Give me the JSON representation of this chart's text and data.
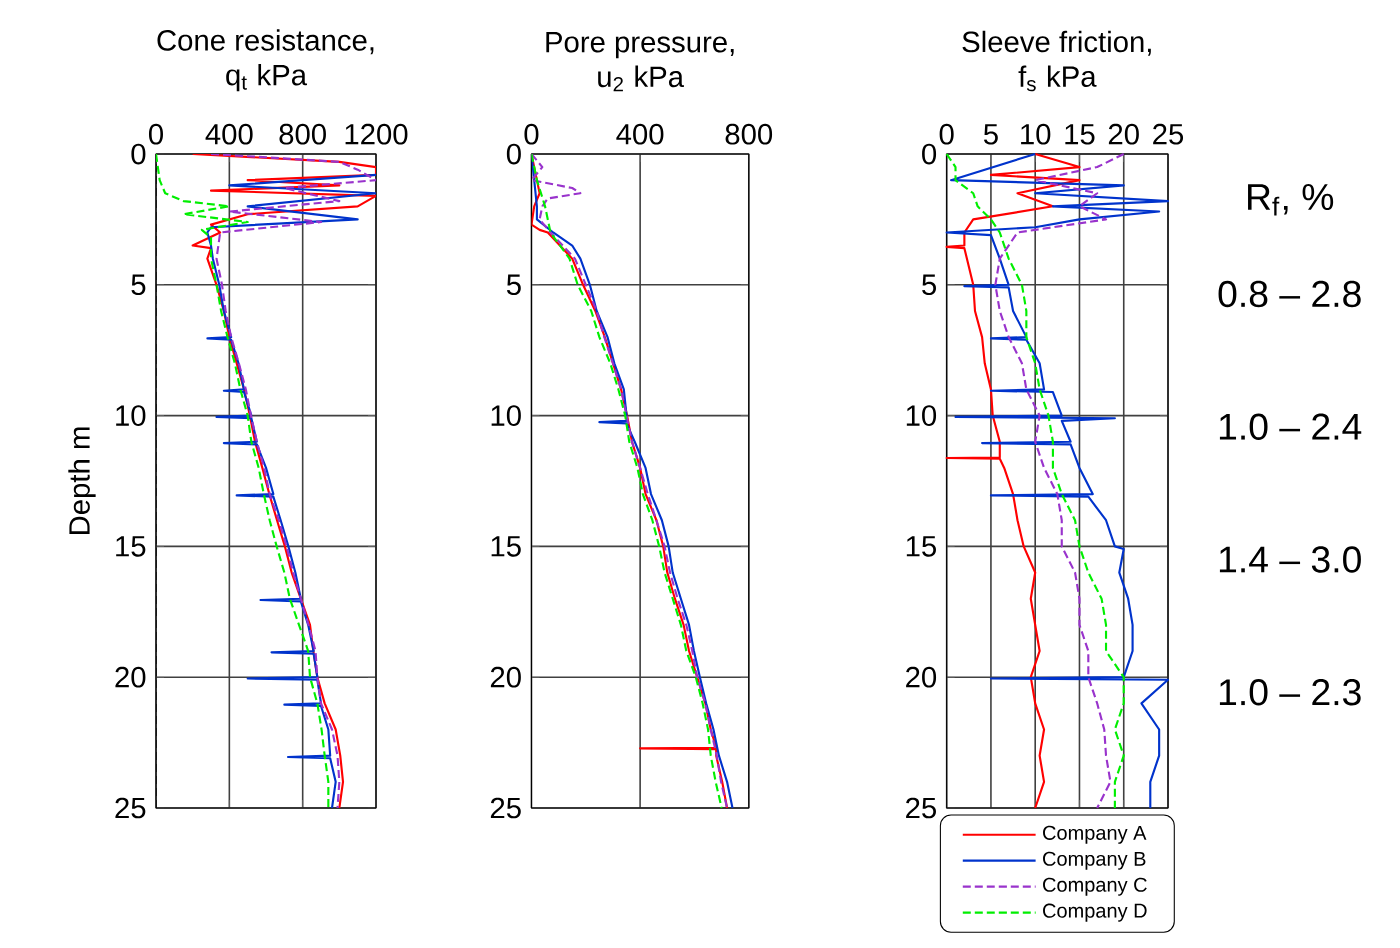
{
  "chart_data": [
    {
      "type": "line",
      "title": "Cone resistance,",
      "xlabel": "q$_{t}$ kPa",
      "ylabel": "Depth m",
      "xlim": [
        0,
        1200
      ],
      "xticks": [
        0,
        400,
        800,
        1200
      ],
      "ylim": [
        25,
        0
      ],
      "yticks": [
        0,
        5,
        10,
        15,
        20,
        25
      ],
      "grid": true,
      "ref_lines": [
        {
          "axis": "x",
          "value": 0,
          "line_style": "dashed",
          "color": "#000000"
        }
      ],
      "series": [
        {
          "color": "#ff0000",
          "line_style": "solid",
          "x": [
            200,
            1000,
            1200,
            1200,
            500,
            1000,
            300,
            1200,
            1100,
            500,
            300,
            350,
            200,
            300,
            280,
            330,
            370,
            400,
            440,
            480,
            512,
            540,
            580,
            618,
            660,
            703,
            740,
            790,
            840,
            858,
            880,
            920,
            980,
            1005,
            1020,
            1000
          ],
          "values": [
            0,
            0.3,
            0.5,
            0.8,
            1.0,
            1.2,
            1.4,
            1.6,
            2.0,
            2.3,
            2.7,
            3.0,
            3.5,
            3.6,
            4,
            5,
            6,
            7,
            8,
            9,
            10,
            11,
            12,
            13,
            14,
            15,
            16,
            17,
            18,
            19,
            20,
            21,
            22,
            23,
            24,
            25
          ]
        },
        {
          "color": "#0033cc",
          "line_style": "solid",
          "x": [
            1200,
            400,
            1200,
            500,
            1100,
            300,
            280,
            300,
            310,
            345,
            370,
            410,
            280,
            410,
            450,
            480,
            370,
            480,
            520,
            330,
            520,
            550,
            370,
            550,
            600,
            640,
            440,
            640,
            680,
            722,
            760,
            790,
            570,
            790,
            830,
            860,
            630,
            860,
            880,
            500,
            880,
            900,
            700,
            900,
            940,
            950,
            720,
            950,
            980,
            960
          ],
          "values": [
            0.8,
            1.2,
            1.5,
            2.0,
            2.5,
            2.8,
            3.0,
            3.5,
            4,
            5,
            6,
            7,
            7.05,
            7.1,
            8,
            9,
            9.05,
            9.1,
            10,
            10.05,
            10.1,
            11,
            11.05,
            11.1,
            12,
            13,
            13.05,
            13.1,
            14,
            15,
            16,
            17,
            17.05,
            17.1,
            18,
            19,
            19.05,
            19.1,
            20,
            20.05,
            20.1,
            21,
            21.05,
            21.1,
            22,
            23,
            23.05,
            23.1,
            24,
            25
          ]
        },
        {
          "color": "#9933cc",
          "line_style": "dashed",
          "x": [
            300,
            1000,
            1100,
            1200,
            700,
            1000,
            400,
            900,
            350,
            330,
            360,
            380,
            410,
            452,
            490,
            518,
            550,
            590,
            620,
            670,
            712,
            748,
            790,
            832,
            870,
            880,
            900,
            960,
            990,
            1000,
            990
          ],
          "values": [
            0,
            0.3,
            0.6,
            1,
            1.3,
            1.8,
            2.2,
            2.6,
            3,
            4,
            5,
            6,
            7,
            8,
            9,
            10,
            11,
            12,
            13,
            14,
            15,
            16,
            17,
            18,
            19,
            20,
            21,
            22,
            23,
            24,
            25
          ]
        },
        {
          "color": "#00ee00",
          "line_style": "dashed",
          "x": [
            0,
            20,
            50,
            150,
            400,
            150,
            500,
            250,
            300,
            300,
            330,
            355,
            390,
            430,
            460,
            500,
            520,
            560,
            588,
            620,
            658,
            700,
            730,
            780,
            830,
            840,
            880,
            903,
            920,
            940,
            940
          ],
          "values": [
            0,
            1,
            1.5,
            1.8,
            2,
            2.3,
            2.6,
            2.9,
            3.2,
            4,
            5,
            6,
            7,
            8,
            9,
            10,
            11,
            12,
            13,
            14,
            15,
            16,
            17,
            18,
            19,
            20,
            21,
            22,
            23,
            24,
            25
          ]
        }
      ]
    },
    {
      "type": "line",
      "title": "Pore pressure,",
      "xlabel": "u$_{2}$ kPa",
      "xlim": [
        0,
        800
      ],
      "xticks": [
        0,
        400,
        800
      ],
      "ylim": [
        25,
        0
      ],
      "yticks": [
        0,
        5,
        10,
        15,
        20,
        25
      ],
      "grid": true,
      "series": [
        {
          "color": "#ff0000",
          "line_style": "solid",
          "x": [
            0,
            20,
            30,
            10,
            0,
            30,
            60,
            150,
            190,
            235,
            270,
            300,
            330,
            352,
            370,
            400,
            420,
            460,
            485,
            500,
            528,
            560,
            580,
            610,
            640,
            660,
            680,
            400,
            680,
            680,
            702,
            720
          ],
          "values": [
            0,
            1,
            1.5,
            2,
            2.7,
            2.9,
            3,
            4,
            5,
            6,
            7,
            8,
            9,
            10,
            11,
            12,
            13,
            14,
            15,
            16,
            17,
            18,
            19,
            20,
            21,
            22,
            22.7,
            22.72,
            22.75,
            23,
            24,
            25
          ]
        },
        {
          "color": "#0033cc",
          "line_style": "solid",
          "x": [
            0,
            10,
            20,
            20,
            80,
            150,
            180,
            215,
            240,
            280,
            305,
            340,
            350,
            350,
            250,
            350,
            380,
            420,
            440,
            480,
            505,
            520,
            550,
            580,
            598,
            620,
            643,
            670,
            690,
            720,
            740
          ],
          "values": [
            0,
            1,
            2,
            2.5,
            3,
            3.5,
            4,
            5,
            6,
            7,
            8,
            9,
            10,
            10.2,
            10.25,
            10.3,
            11,
            12,
            13,
            14,
            15,
            16,
            17,
            18,
            19,
            20,
            21,
            22,
            23,
            24,
            25
          ]
        },
        {
          "color": "#9933cc",
          "line_style": "dashed",
          "x": [
            0,
            40,
            0,
            150,
            180,
            60,
            40,
            30,
            70,
            160,
            200,
            240,
            268,
            300,
            330,
            350,
            370,
            400,
            428,
            460,
            490,
            510,
            538,
            570,
            592,
            610,
            640,
            660,
            682,
            698,
            720
          ],
          "values": [
            0,
            0.5,
            1,
            1.3,
            1.5,
            1.7,
            2,
            2.5,
            3,
            4,
            5,
            6,
            7,
            8,
            9,
            10,
            11,
            12,
            13,
            14,
            15,
            16,
            17,
            18,
            19,
            20,
            21,
            22,
            23,
            24,
            25
          ]
        },
        {
          "color": "#00ee00",
          "line_style": "dashed",
          "x": [
            0,
            20,
            50,
            70,
            140,
            170,
            220,
            250,
            290,
            320,
            345,
            360,
            390,
            410,
            445,
            470,
            490,
            520,
            550,
            570,
            605,
            630,
            650,
            660,
            678,
            700
          ],
          "values": [
            0,
            1,
            2,
            3,
            4,
            5,
            6,
            7,
            8,
            9,
            10,
            11,
            12,
            13,
            14,
            15,
            16,
            17,
            18,
            19,
            20,
            21,
            22,
            23,
            24,
            25
          ]
        }
      ]
    },
    {
      "type": "line",
      "title": "Sleeve friction,",
      "xlabel": "f$_{s}$ kPa",
      "xlim": [
        0,
        25
      ],
      "xticks": [
        0,
        5,
        10,
        15,
        20,
        25
      ],
      "ylim": [
        25,
        0
      ],
      "yticks": [
        0,
        5,
        10,
        15,
        20,
        25
      ],
      "grid": true,
      "legend": "bottom",
      "annotations": [
        "R$_{f}$, %",
        "0.8 – 2.8",
        "1.0 – 2.4",
        "1.4 – 3.0",
        "1.0 – 2.3"
      ],
      "series": [
        {
          "name": "Company A",
          "color": "#ff0000",
          "line_style": "solid",
          "x": [
            10,
            15,
            5,
            15,
            8,
            12,
            3,
            2,
            2,
            0,
            2,
            3,
            3.2,
            4,
            4.3,
            5,
            5.2,
            6,
            6,
            0,
            6,
            6.5,
            7.5,
            8,
            8.7,
            10,
            9.5,
            10,
            10.5,
            9.5,
            10,
            11,
            10.5,
            11,
            10
          ],
          "values": [
            0,
            0.5,
            0.8,
            1,
            1.5,
            2,
            2.5,
            3,
            3.5,
            3.55,
            3.6,
            5,
            6,
            7,
            8,
            9,
            10,
            11,
            11.6,
            11.62,
            11.65,
            12,
            13,
            14,
            15,
            16,
            17,
            18,
            19,
            20,
            21,
            22,
            23,
            24,
            25
          ]
        },
        {
          "name": "Company B",
          "color": "#0033cc",
          "line_style": "solid",
          "x": [
            10,
            0.5,
            20,
            10,
            25,
            12,
            24,
            15,
            10,
            0,
            5,
            6,
            7,
            2,
            7,
            7.5,
            9,
            5,
            9,
            10.5,
            11,
            5,
            12,
            13,
            1,
            19,
            13,
            14,
            4,
            14,
            15,
            16.5,
            5,
            16,
            18,
            19,
            20,
            19.5,
            20.5,
            21,
            21,
            20,
            5,
            25,
            22,
            24,
            24,
            23,
            23
          ],
          "values": [
            0,
            1,
            1.2,
            1.5,
            1.8,
            2.0,
            2.2,
            2.5,
            2.8,
            3,
            3.1,
            4,
            5,
            5.05,
            5.1,
            6,
            7,
            7.05,
            7.1,
            8,
            9,
            9.05,
            9.1,
            10,
            10.05,
            10.1,
            10.2,
            11,
            11.05,
            11.1,
            12,
            13,
            13.05,
            13.1,
            14,
            15,
            15.1,
            16,
            17,
            18,
            19,
            20,
            20.05,
            20.1,
            21,
            22,
            23,
            24,
            25
          ]
        },
        {
          "name": "Company C",
          "color": "#9933cc",
          "line_style": "dashed",
          "x": [
            20,
            17,
            10,
            17,
            15,
            18,
            8,
            6,
            5.5,
            6,
            7,
            8.5,
            9,
            10.5,
            10,
            11,
            12.5,
            13,
            13,
            14.5,
            15,
            15,
            16,
            16,
            17,
            17.8,
            18,
            18.5,
            17
          ],
          "values": [
            0,
            0.5,
            1,
            1.5,
            2,
            2.5,
            3,
            4,
            5,
            6,
            7,
            8,
            9,
            10,
            11,
            12,
            13,
            14,
            15,
            16,
            17,
            18,
            19,
            20,
            21,
            22,
            23,
            24,
            25
          ]
        },
        {
          "name": "Company D",
          "color": "#00ee00",
          "line_style": "dashed",
          "x": [
            0,
            1,
            1,
            3,
            3.5,
            5,
            6,
            7,
            8.5,
            9,
            9,
            10,
            10.5,
            11.5,
            12,
            12,
            13,
            14.5,
            15,
            16,
            17.5,
            18,
            18,
            20,
            20,
            19,
            20,
            19,
            19
          ],
          "values": [
            0,
            0.5,
            1,
            1.5,
            2,
            2.5,
            3,
            4,
            5,
            6,
            7,
            8,
            9,
            10,
            11,
            12,
            13,
            14,
            15,
            16,
            17,
            18,
            19,
            20,
            21,
            22,
            23,
            24,
            25
          ]
        }
      ]
    }
  ]
}
